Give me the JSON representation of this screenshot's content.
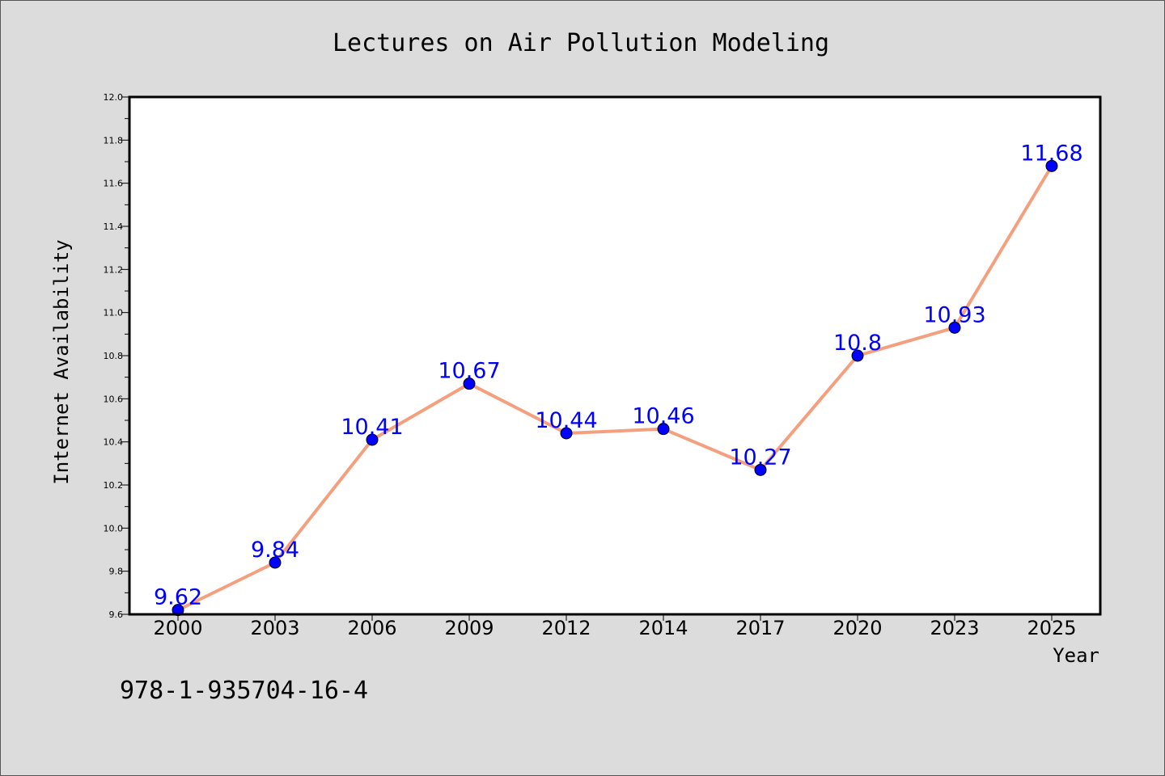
{
  "chart_data": {
    "type": "line",
    "title": "Lectures on Air Pollution Modeling",
    "xlabel": "Year",
    "ylabel": "Internet Availability",
    "categories": [
      "2000",
      "2003",
      "2006",
      "2009",
      "2012",
      "2014",
      "2017",
      "2020",
      "2023",
      "2025"
    ],
    "values": [
      9.62,
      9.84,
      10.41,
      10.67,
      10.44,
      10.46,
      10.27,
      10.8,
      10.93,
      11.68
    ],
    "data_labels": [
      "9.62",
      "9.84",
      "10.41",
      "10.67",
      "10.44",
      "10.46",
      "10.27",
      "10.8",
      "10.93",
      "11.68"
    ],
    "ylim": [
      9.6,
      12.0
    ],
    "yticks": [
      "9.6",
      "9.8",
      "10.0",
      "10.2",
      "10.4",
      "10.6",
      "10.8",
      "11.0",
      "11.2",
      "11.4",
      "11.6",
      "11.8",
      "12.0"
    ],
    "grid": false,
    "line_color": "#f4a07e",
    "marker_color": "#0000ff",
    "label_color": "#0000ff"
  },
  "footer_text": "978-1-935704-16-4"
}
